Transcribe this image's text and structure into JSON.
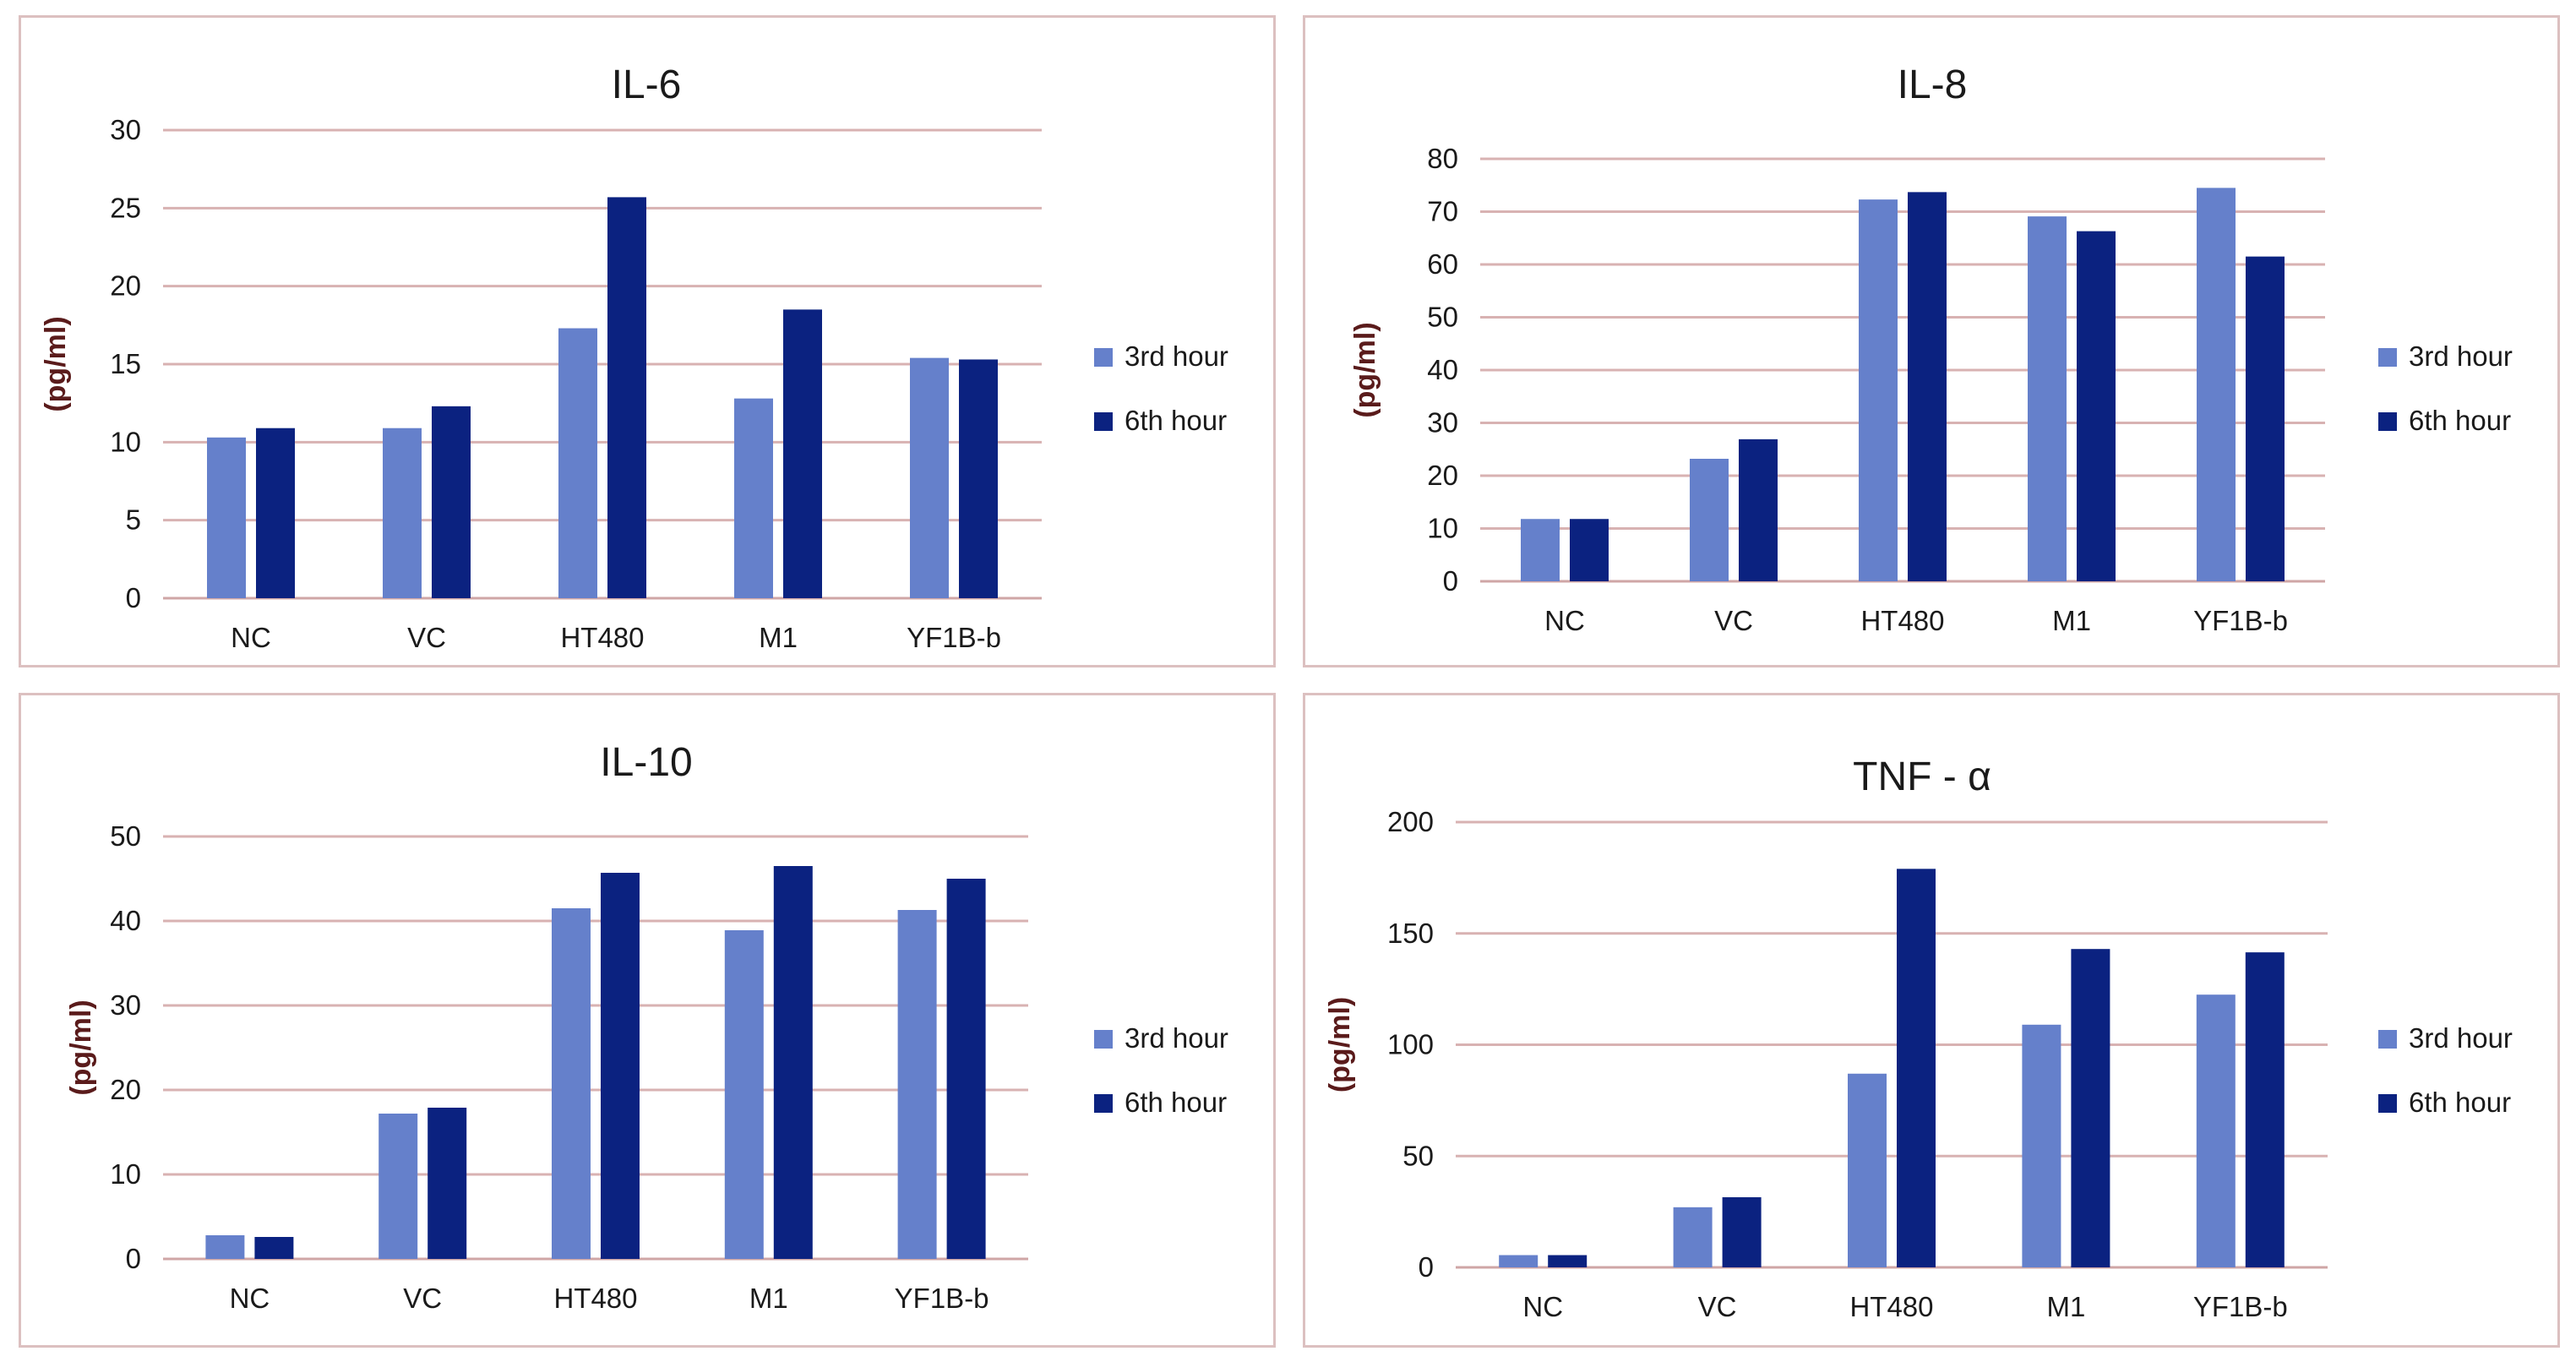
{
  "colors": {
    "series_3rd": "#6580CB",
    "series_6th": "#0B2280"
  },
  "chart_data": [
    {
      "type": "bar",
      "title": "IL-6",
      "ylabel": "(pg/ml)",
      "xlabel": "",
      "categories": [
        "NC",
        "VC",
        "HT480",
        "M1",
        "YF1B-b"
      ],
      "ylim": [
        0,
        30
      ],
      "yticks": [
        0,
        5,
        10,
        15,
        20,
        25,
        30
      ],
      "grid": true,
      "legend": "right",
      "series": [
        {
          "name": "3rd hour",
          "values": [
            10.3,
            10.9,
            17.3,
            12.8,
            15.4
          ]
        },
        {
          "name": "6th hour",
          "values": [
            10.9,
            12.3,
            25.7,
            18.5,
            15.3
          ]
        }
      ]
    },
    {
      "type": "bar",
      "title": "IL-8",
      "ylabel": "(pg/ml)",
      "xlabel": "",
      "categories": [
        "NC",
        "VC",
        "HT480",
        "M1",
        "YF1B-b"
      ],
      "ylim": [
        0,
        80
      ],
      "yticks": [
        0,
        10,
        20,
        30,
        40,
        50,
        60,
        70,
        80
      ],
      "grid": true,
      "legend": "right",
      "series": [
        {
          "name": "3rd hour",
          "values": [
            11.8,
            23.2,
            72.3,
            69.1,
            74.5
          ]
        },
        {
          "name": "6th hour",
          "values": [
            11.8,
            26.9,
            73.7,
            66.3,
            61.5
          ]
        }
      ]
    },
    {
      "type": "bar",
      "title": "IL-10",
      "ylabel": "(pg/ml)",
      "xlabel": "",
      "categories": [
        "NC",
        "VC",
        "HT480",
        "M1",
        "YF1B-b"
      ],
      "ylim": [
        0,
        50
      ],
      "yticks": [
        0,
        10,
        20,
        30,
        40,
        50
      ],
      "grid": true,
      "legend": "right",
      "series": [
        {
          "name": "3rd hour",
          "values": [
            2.8,
            17.2,
            41.5,
            38.9,
            41.3
          ]
        },
        {
          "name": "6th hour",
          "values": [
            2.6,
            17.9,
            45.7,
            46.5,
            45.0
          ]
        }
      ]
    },
    {
      "type": "bar",
      "title": "TNF - α",
      "ylabel": "(pg/ml)",
      "xlabel": "",
      "categories": [
        "NC",
        "VC",
        "HT480",
        "M1",
        "YF1B-b"
      ],
      "ylim": [
        0,
        200
      ],
      "yticks": [
        0,
        50,
        100,
        150,
        200
      ],
      "grid": true,
      "legend": "right",
      "series": [
        {
          "name": "3rd hour",
          "values": [
            5.5,
            27.0,
            87.0,
            109.0,
            122.5
          ]
        },
        {
          "name": "6th hour",
          "values": [
            5.5,
            31.5,
            179.0,
            143.0,
            141.5
          ]
        }
      ]
    }
  ]
}
